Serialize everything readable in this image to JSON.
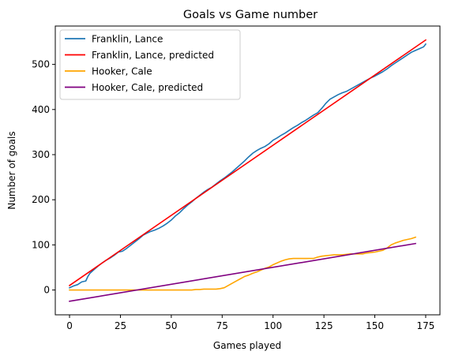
{
  "chart_data": {
    "type": "line",
    "title": "Goals vs Game number",
    "xlabel": "Games played",
    "ylabel": "Number of goals",
    "xlim": [
      -7,
      182
    ],
    "ylim": [
      -55,
      585
    ],
    "xticks": [
      0,
      25,
      50,
      75,
      100,
      125,
      150,
      175
    ],
    "yticks": [
      0,
      100,
      200,
      300,
      400,
      500
    ],
    "grid": false,
    "legend_position": "top-left",
    "series": [
      {
        "name": "Franklin, Lance",
        "color": "#1f77b4",
        "x": [
          0,
          2,
          4,
          6,
          8,
          9,
          10,
          12,
          14,
          16,
          18,
          20,
          22,
          24,
          26,
          28,
          30,
          32,
          34,
          36,
          38,
          40,
          42,
          44,
          46,
          48,
          50,
          52,
          54,
          56,
          58,
          60,
          62,
          64,
          66,
          68,
          70,
          72,
          74,
          76,
          78,
          80,
          82,
          84,
          86,
          88,
          90,
          92,
          94,
          96,
          98,
          100,
          102,
          104,
          106,
          108,
          110,
          112,
          114,
          116,
          118,
          120,
          122,
          124,
          126,
          128,
          130,
          132,
          134,
          136,
          138,
          140,
          142,
          144,
          146,
          148,
          150,
          152,
          154,
          156,
          158,
          160,
          162,
          164,
          166,
          168,
          170,
          172,
          174,
          175
        ],
        "y": [
          5,
          9,
          12,
          18,
          20,
          30,
          37,
          45,
          53,
          60,
          66,
          71,
          77,
          84,
          86,
          92,
          99,
          106,
          113,
          121,
          126,
          130,
          133,
          137,
          142,
          148,
          155,
          164,
          171,
          180,
          188,
          195,
          203,
          210,
          217,
          223,
          228,
          235,
          242,
          248,
          255,
          262,
          270,
          278,
          286,
          295,
          303,
          309,
          314,
          318,
          324,
          332,
          337,
          343,
          348,
          354,
          360,
          365,
          371,
          376,
          382,
          388,
          393,
          403,
          414,
          423,
          428,
          433,
          437,
          440,
          445,
          450,
          455,
          460,
          465,
          470,
          474,
          479,
          484,
          490,
          497,
          503,
          509,
          515,
          521,
          527,
          531,
          535,
          539,
          545
        ]
      },
      {
        "name": "Franklin, Lance, predicted",
        "color": "#ff0000",
        "x": [
          0,
          175
        ],
        "y": [
          10,
          554
        ]
      },
      {
        "name": "Hooker, Cale",
        "color": "#ffa500",
        "x": [
          0,
          10,
          20,
          30,
          40,
          50,
          60,
          62,
          64,
          66,
          68,
          70,
          72,
          74,
          76,
          78,
          80,
          82,
          84,
          86,
          88,
          90,
          92,
          94,
          96,
          98,
          100,
          102,
          104,
          106,
          108,
          110,
          112,
          114,
          116,
          118,
          120,
          122,
          124,
          126,
          128,
          130,
          132,
          134,
          136,
          138,
          140,
          142,
          144,
          146,
          148,
          150,
          152,
          154,
          156,
          158,
          160,
          162,
          164,
          166,
          168,
          170
        ],
        "y": [
          0,
          0,
          0,
          0,
          0,
          0,
          0,
          1,
          1,
          2,
          2,
          2,
          2,
          3,
          5,
          10,
          15,
          20,
          25,
          30,
          33,
          37,
          40,
          44,
          48,
          51,
          56,
          60,
          64,
          67,
          69,
          70,
          70,
          70,
          70,
          70,
          70,
          73,
          75,
          76,
          77,
          78,
          78,
          78,
          79,
          80,
          80,
          80,
          80,
          82,
          83,
          84,
          86,
          88,
          93,
          100,
          104,
          107,
          110,
          112,
          114,
          117
        ]
      },
      {
        "name": "Hooker, Cale, predicted",
        "color": "#800080",
        "x": [
          0,
          170
        ],
        "y": [
          -25,
          103
        ]
      }
    ]
  }
}
